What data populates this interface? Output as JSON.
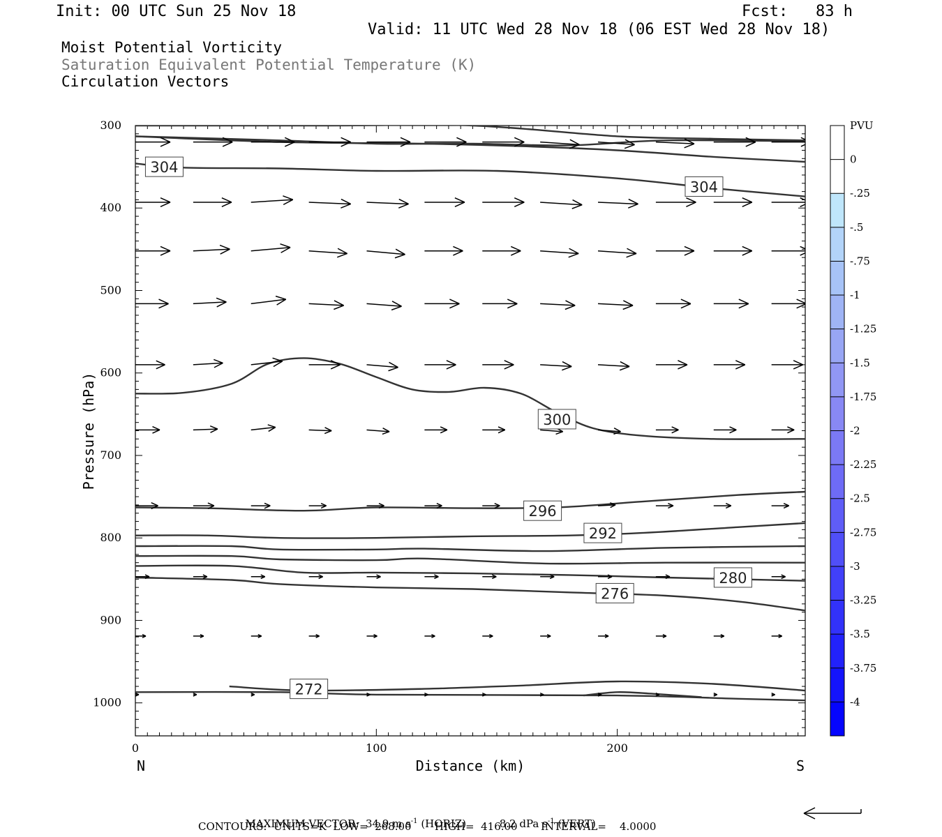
{
  "header": {
    "init": "Init: 00 UTC Sun 25 Nov 18",
    "fcst": "Fcst:   83 h",
    "valid": "Valid: 11 UTC Wed 28 Nov 18 (06 EST Wed 28 Nov 18)"
  },
  "titles": {
    "line1": "Moist Potential Vorticity",
    "line2": "Saturation Equivalent Potential Temperature (K)",
    "line3": "Circulation Vectors",
    "line1_color": "#000000",
    "line2_color": "#777777",
    "line3_color": "#000000"
  },
  "footer": {
    "max_vector_label": "MAXIMUM VECTOR:",
    "max_vector_horiz": "34.9 m s",
    "horiz_sup": "-1",
    "horiz_suffix": "(HORIZ)",
    "max_vector_vert": "8.2 dPa s",
    "vert_sup": "-1",
    "vert_suffix": "(VERT)",
    "contours": "CONTOURS:  UNITS=K  LOW=  268.00       HIGH=  416.00       INTERVAL=    4.0000"
  },
  "chart_data": {
    "type": "cross-section",
    "xlabel": "Distance (km)",
    "ylabel": "Pressure (hPa)",
    "xlim": [
      0,
      278
    ],
    "ylim": [
      1040,
      300
    ],
    "x_ticks": [
      0,
      100,
      200
    ],
    "y_ticks": [
      300,
      400,
      500,
      600,
      700,
      800,
      900,
      1000
    ],
    "x_end_labels": {
      "left": "N",
      "right": "S"
    },
    "colorbar": {
      "unit": "PVU",
      "labels": [
        "0",
        "-.25",
        "-.5",
        "-.75",
        "-1",
        "-1.25",
        "-1.5",
        "-1.75",
        "-2",
        "-2.25",
        "-2.5",
        "-2.75",
        "-3",
        "-3.25",
        "-3.5",
        "-3.75",
        "-4"
      ],
      "colors": [
        "#ffffff",
        "#ffffff",
        "#bfe6fb",
        "#b3d4f9",
        "#a7c3f7",
        "#9fb4f5",
        "#98a6f4",
        "#9197f4",
        "#8888f4",
        "#7b79f5",
        "#6e6bf6",
        "#5f5df7",
        "#504ff8",
        "#4140f9",
        "#3232fa",
        "#2222fb",
        "#1414fc",
        "#0505fe"
      ]
    },
    "contour_labels": [
      {
        "text": "304",
        "x": 12,
        "p": 350
      },
      {
        "text": "304",
        "x": 236,
        "p": 374
      },
      {
        "text": "300",
        "x": 175,
        "p": 656
      },
      {
        "text": "296",
        "x": 169,
        "p": 767
      },
      {
        "text": "292",
        "x": 194,
        "p": 794
      },
      {
        "text": "280",
        "x": 248,
        "p": 848
      },
      {
        "text": "276",
        "x": 199,
        "p": 867
      },
      {
        "text": "272",
        "x": 72,
        "p": 983
      }
    ],
    "contours": [
      [
        [
          0,
          300
        ],
        [
          80,
          300
        ],
        [
          140,
          300
        ],
        [
          200,
          313
        ],
        [
          240,
          316
        ],
        [
          278,
          318
        ]
      ],
      [
        [
          0,
          313
        ],
        [
          60,
          318
        ],
        [
          100,
          322
        ],
        [
          140,
          322
        ],
        [
          180,
          324
        ],
        [
          220,
          318
        ],
        [
          278,
          319
        ]
      ],
      [
        [
          0,
          313
        ],
        [
          60,
          320
        ],
        [
          120,
          322
        ],
        [
          160,
          325
        ],
        [
          200,
          330
        ],
        [
          240,
          338
        ],
        [
          278,
          344
        ]
      ],
      [
        [
          0,
          346
        ],
        [
          20,
          351
        ],
        [
          60,
          352
        ],
        [
          100,
          355
        ],
        [
          150,
          355
        ],
        [
          200,
          364
        ],
        [
          240,
          376
        ],
        [
          278,
          386
        ]
      ],
      [
        [
          0,
          625
        ],
        [
          20,
          624
        ],
        [
          40,
          613
        ],
        [
          55,
          589
        ],
        [
          70,
          582
        ],
        [
          85,
          589
        ],
        [
          100,
          605
        ],
        [
          115,
          620
        ],
        [
          130,
          623
        ],
        [
          145,
          618
        ],
        [
          160,
          625
        ],
        [
          175,
          648
        ],
        [
          190,
          667
        ],
        [
          210,
          676
        ],
        [
          240,
          680
        ],
        [
          278,
          680
        ]
      ],
      [
        [
          0,
          763
        ],
        [
          30,
          764
        ],
        [
          70,
          767
        ],
        [
          100,
          763
        ],
        [
          140,
          764
        ],
        [
          175,
          763
        ],
        [
          210,
          756
        ],
        [
          250,
          748
        ],
        [
          278,
          744
        ]
      ],
      [
        [
          0,
          797
        ],
        [
          30,
          797
        ],
        [
          60,
          800
        ],
        [
          100,
          800
        ],
        [
          140,
          798
        ],
        [
          180,
          797
        ],
        [
          210,
          794
        ],
        [
          250,
          787
        ],
        [
          278,
          782
        ]
      ],
      [
        [
          0,
          810
        ],
        [
          40,
          810
        ],
        [
          60,
          814
        ],
        [
          100,
          814
        ],
        [
          120,
          813
        ],
        [
          170,
          816
        ],
        [
          220,
          812
        ],
        [
          278,
          810
        ]
      ],
      [
        [
          0,
          822
        ],
        [
          40,
          822
        ],
        [
          60,
          826
        ],
        [
          100,
          827
        ],
        [
          120,
          825
        ],
        [
          170,
          831
        ],
        [
          220,
          830
        ],
        [
          278,
          830
        ]
      ],
      [
        [
          0,
          834
        ],
        [
          40,
          834
        ],
        [
          70,
          842
        ],
        [
          100,
          842
        ],
        [
          140,
          843
        ],
        [
          180,
          845
        ],
        [
          220,
          848
        ],
        [
          278,
          852
        ]
      ],
      [
        [
          0,
          848
        ],
        [
          40,
          851
        ],
        [
          60,
          856
        ],
        [
          100,
          860
        ],
        [
          140,
          862
        ],
        [
          180,
          866
        ],
        [
          220,
          870
        ],
        [
          250,
          877
        ],
        [
          278,
          888
        ]
      ],
      [
        [
          0,
          987
        ],
        [
          60,
          987
        ],
        [
          100,
          990
        ],
        [
          200,
          991
        ],
        [
          250,
          995
        ],
        [
          278,
          997
        ]
      ],
      [
        [
          39,
          980
        ],
        [
          70,
          985
        ],
        [
          120,
          983
        ],
        [
          160,
          979
        ],
        [
          200,
          974
        ],
        [
          240,
          977
        ],
        [
          278,
          985
        ]
      ],
      [
        [
          186,
          991
        ],
        [
          200,
          987
        ],
        [
          215,
          989
        ],
        [
          235,
          993
        ]
      ]
    ],
    "vector_rows": [
      {
        "p": 320,
        "x": [
          0,
          24,
          48,
          72,
          96,
          120,
          144,
          168,
          192,
          216,
          240,
          264
        ],
        "u": [
          40,
          45,
          50,
          48,
          50,
          48,
          48,
          45,
          42,
          44,
          48,
          45
        ],
        "v": [
          0,
          0,
          0,
          0,
          0,
          0,
          0,
          3,
          3,
          2,
          0,
          0
        ]
      },
      {
        "p": 393,
        "x": [
          0,
          24,
          48,
          72,
          96,
          120,
          144,
          168,
          192,
          216,
          240,
          264
        ],
        "u": [
          40,
          44,
          48,
          48,
          48,
          46,
          48,
          48,
          46,
          46,
          44,
          44
        ],
        "v": [
          0,
          0,
          -3,
          2,
          2,
          0,
          0,
          3,
          2,
          0,
          0,
          0
        ]
      },
      {
        "p": 452,
        "x": [
          0,
          24,
          48,
          72,
          96,
          120,
          144,
          168,
          192,
          216,
          240,
          264
        ],
        "u": [
          40,
          42,
          45,
          44,
          44,
          44,
          44,
          44,
          44,
          44,
          44,
          44
        ],
        "v": [
          0,
          -2,
          -4,
          3,
          4,
          0,
          0,
          3,
          3,
          0,
          0,
          0
        ]
      },
      {
        "p": 516,
        "x": [
          0,
          24,
          48,
          72,
          96,
          120,
          144,
          168,
          192,
          216,
          240,
          264
        ],
        "u": [
          38,
          38,
          40,
          40,
          40,
          40,
          40,
          40,
          40,
          40,
          40,
          40
        ],
        "v": [
          0,
          -2,
          -5,
          2,
          3,
          0,
          0,
          2,
          2,
          0,
          0,
          0
        ]
      },
      {
        "p": 590,
        "x": [
          0,
          24,
          48,
          72,
          96,
          120,
          144,
          168,
          192,
          216,
          240,
          264
        ],
        "u": [
          34,
          34,
          36,
          36,
          36,
          36,
          36,
          36,
          36,
          36,
          36,
          36
        ],
        "v": [
          0,
          -2,
          -4,
          0,
          3,
          0,
          0,
          2,
          2,
          0,
          0,
          0
        ]
      },
      {
        "p": 669,
        "x": [
          0,
          24,
          48,
          72,
          96,
          120,
          144,
          168,
          192,
          216,
          240,
          264
        ],
        "u": [
          28,
          28,
          28,
          26,
          26,
          26,
          26,
          26,
          26,
          26,
          26,
          26
        ],
        "v": [
          0,
          -1,
          -3,
          1,
          2,
          0,
          0,
          2,
          2,
          0,
          0,
          0
        ]
      },
      {
        "p": 761,
        "x": [
          0,
          24,
          48,
          72,
          96,
          120,
          144,
          168,
          192,
          216,
          240,
          264
        ],
        "u": [
          26,
          24,
          22,
          20,
          20,
          20,
          20,
          20,
          20,
          20,
          20,
          20
        ],
        "v": [
          0,
          0,
          0,
          0,
          0,
          0,
          0,
          0,
          -1,
          0,
          0,
          0
        ]
      },
      {
        "p": 847,
        "x": [
          0,
          24,
          48,
          72,
          96,
          120,
          144,
          168,
          192,
          216,
          240,
          264
        ],
        "u": [
          16,
          16,
          16,
          16,
          16,
          16,
          16,
          16,
          16,
          16,
          16,
          16
        ],
        "v": [
          0,
          0,
          0,
          0,
          0,
          0,
          0,
          0,
          0,
          0,
          0,
          0
        ]
      },
      {
        "p": 919,
        "x": [
          0,
          24,
          48,
          72,
          96,
          120,
          144,
          168,
          192,
          216,
          240,
          264
        ],
        "u": [
          12,
          12,
          12,
          12,
          12,
          12,
          12,
          12,
          12,
          12,
          12,
          12
        ],
        "v": [
          0,
          0,
          0,
          0,
          0,
          0,
          0,
          0,
          0,
          0,
          0,
          0
        ]
      },
      {
        "p": 990,
        "x": [
          0,
          24,
          48,
          72,
          96,
          120,
          144,
          168,
          192,
          216,
          240,
          264
        ],
        "u": [
          4,
          4,
          4,
          4,
          4,
          4,
          4,
          4,
          4,
          4,
          4,
          4
        ],
        "v": [
          0,
          0,
          0,
          0,
          0,
          0,
          0,
          0,
          0,
          0,
          0,
          0
        ]
      }
    ],
    "reference_vector": {
      "u": -34.9,
      "v": 0
    }
  }
}
